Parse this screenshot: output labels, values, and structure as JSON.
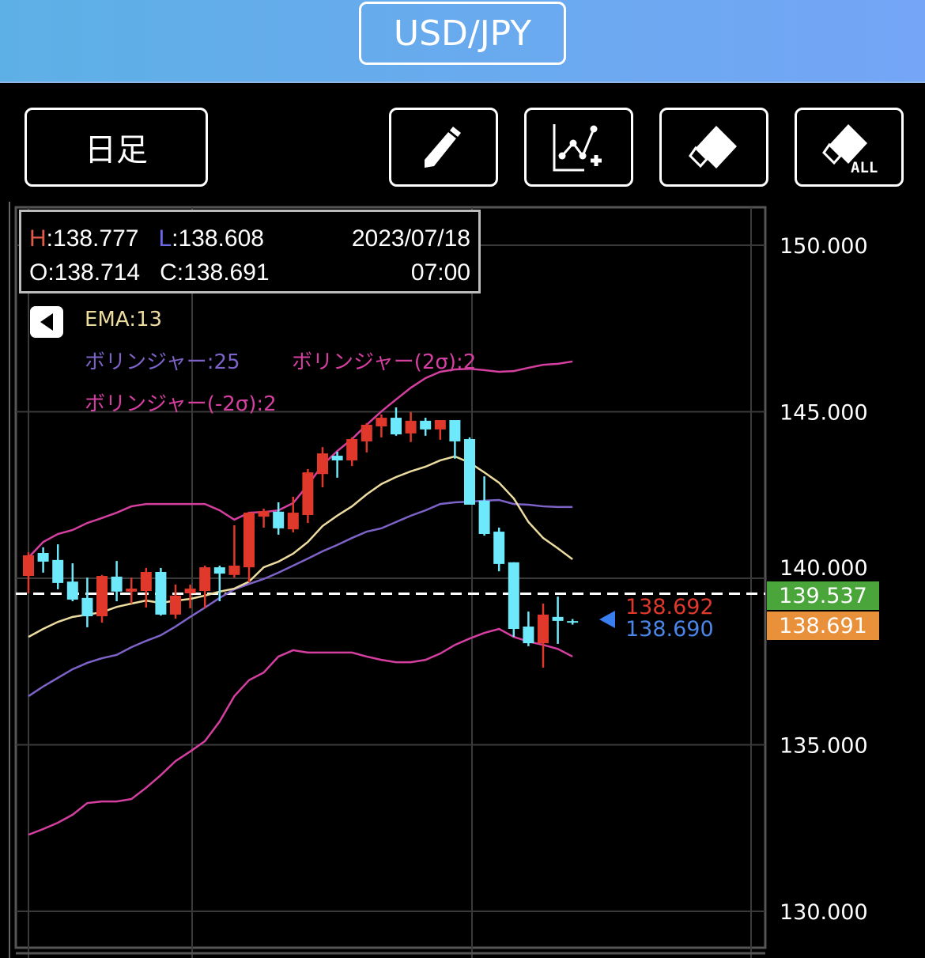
{
  "header": {
    "pair": "USD/JPY"
  },
  "toolbar": {
    "period": "日足",
    "icons": [
      "pencil-icon",
      "add-trendline-icon",
      "eraser-icon",
      "eraser-all-icon"
    ],
    "eraser_all_text": "ALL"
  },
  "info": {
    "h_label": "H",
    "h_value": ":138.777",
    "l_label": "L",
    "l_value": ":138.608",
    "date": "2023/07/18",
    "o": "O:138.714",
    "c": "C:138.691",
    "time": "07:00"
  },
  "legend": {
    "ema": "EMA:13",
    "bb_mid": "ボリンジャー:25",
    "bb_upper": "ボリンジャー(2σ):2",
    "bb_lower": "ボリンジャー(-2σ):2"
  },
  "price_tags": {
    "bid": "138.692",
    "ask": "138.690",
    "marker": "139.537",
    "current": "138.691"
  },
  "colors": {
    "up": "#e0392b",
    "down": "#6ee9fb",
    "ema": "#ecdca0",
    "bb_mid": "#7d63c8",
    "bb_band": "#d43fa0",
    "marker": "#4aa53a",
    "current": "#e8903a",
    "bid": "#e0392b",
    "ask": "#4a86e8"
  },
  "chart_data": {
    "type": "candlestick",
    "y_ticks": [
      "150.000",
      "145.000",
      "140.000",
      "135.000",
      "130.000"
    ],
    "ylim": [
      128,
      151.3
    ],
    "dashed_line": 139.537,
    "candles": [
      [
        140.07,
        140.78,
        139.55,
        140.69
      ],
      [
        140.76,
        140.93,
        140.17,
        140.5
      ],
      [
        140.55,
        141.02,
        139.67,
        139.86
      ],
      [
        139.9,
        140.45,
        139.31,
        139.36
      ],
      [
        139.41,
        140.02,
        138.53,
        138.86
      ],
      [
        138.86,
        140.1,
        138.67,
        140.07
      ],
      [
        140.05,
        140.52,
        139.31,
        139.6
      ],
      [
        139.6,
        140.02,
        139.24,
        139.69
      ],
      [
        139.62,
        140.31,
        139.12,
        140.19
      ],
      [
        140.19,
        140.31,
        138.88,
        138.91
      ],
      [
        138.91,
        139.81,
        138.79,
        139.48
      ],
      [
        139.55,
        139.81,
        139.1,
        139.69
      ],
      [
        139.62,
        140.38,
        139.1,
        140.33
      ],
      [
        140.33,
        140.38,
        139.31,
        140.14
      ],
      [
        140.1,
        141.59,
        140.02,
        140.38
      ],
      [
        140.33,
        141.99,
        139.88,
        141.97
      ],
      [
        141.85,
        142.09,
        141.52,
        142.02
      ],
      [
        142.0,
        142.28,
        141.31,
        141.5
      ],
      [
        141.47,
        142.45,
        141.38,
        141.97
      ],
      [
        141.9,
        143.28,
        141.66,
        143.18
      ],
      [
        143.13,
        143.94,
        142.73,
        143.75
      ],
      [
        143.68,
        143.8,
        143.02,
        143.54
      ],
      [
        143.54,
        144.23,
        143.37,
        144.18
      ],
      [
        144.11,
        144.66,
        143.78,
        144.61
      ],
      [
        144.56,
        144.92,
        144.23,
        144.82
      ],
      [
        144.82,
        145.13,
        144.28,
        144.32
      ],
      [
        144.35,
        144.99,
        144.09,
        144.73
      ],
      [
        144.73,
        144.82,
        144.28,
        144.47
      ],
      [
        144.47,
        144.75,
        144.16,
        144.75
      ],
      [
        144.75,
        144.75,
        143.59,
        144.11
      ],
      [
        144.18,
        144.23,
        142.21,
        142.21
      ],
      [
        142.33,
        143.06,
        141.28,
        141.33
      ],
      [
        141.4,
        141.52,
        140.21,
        140.43
      ],
      [
        140.48,
        140.48,
        138.24,
        138.48
      ],
      [
        138.55,
        139.0,
        137.96,
        138.05
      ],
      [
        138.05,
        139.24,
        137.32,
        138.91
      ],
      [
        138.84,
        139.45,
        138.03,
        138.72
      ],
      [
        138.714,
        138.777,
        138.608,
        138.691
      ]
    ],
    "ema13": [
      138.24,
      138.48,
      138.69,
      138.84,
      138.91,
      138.98,
      139.14,
      139.24,
      139.33,
      139.26,
      139.33,
      139.38,
      139.48,
      139.6,
      139.69,
      139.9,
      140.33,
      140.5,
      140.74,
      141.09,
      141.57,
      141.88,
      142.16,
      142.52,
      142.83,
      143.04,
      143.21,
      143.35,
      143.54,
      143.66,
      143.47,
      143.18,
      142.87,
      142.4,
      141.69,
      141.21,
      140.9,
      140.57
    ],
    "bb_mid": [
      136.46,
      136.75,
      137.01,
      137.27,
      137.46,
      137.6,
      137.7,
      137.93,
      138.12,
      138.29,
      138.55,
      138.84,
      139.12,
      139.41,
      139.67,
      139.83,
      139.98,
      140.17,
      140.38,
      140.59,
      140.81,
      141.0,
      141.21,
      141.4,
      141.5,
      141.69,
      141.88,
      142.04,
      142.23,
      142.28,
      142.3,
      142.33,
      142.35,
      142.23,
      142.21,
      142.16,
      142.14,
      142.14
    ],
    "bb_upper": [
      140.62,
      141.09,
      141.33,
      141.45,
      141.66,
      141.81,
      141.97,
      142.16,
      142.23,
      142.23,
      142.23,
      142.23,
      142.23,
      142.04,
      141.76,
      141.97,
      141.99,
      142.04,
      142.26,
      142.8,
      143.4,
      143.82,
      144.18,
      144.61,
      145.01,
      145.37,
      145.72,
      146.01,
      146.2,
      146.27,
      146.29,
      146.25,
      146.2,
      146.22,
      146.32,
      146.41,
      146.44,
      146.51
    ],
    "bb_lower": [
      132.3,
      132.47,
      132.66,
      132.9,
      133.25,
      133.3,
      133.3,
      133.37,
      133.71,
      134.09,
      134.51,
      134.8,
      135.11,
      135.7,
      136.46,
      136.94,
      137.17,
      137.65,
      137.84,
      137.77,
      137.77,
      137.77,
      137.77,
      137.65,
      137.55,
      137.48,
      137.48,
      137.55,
      137.74,
      138.0,
      138.19,
      138.36,
      138.48,
      138.24,
      138.1,
      138.0,
      137.88,
      137.65
    ]
  }
}
